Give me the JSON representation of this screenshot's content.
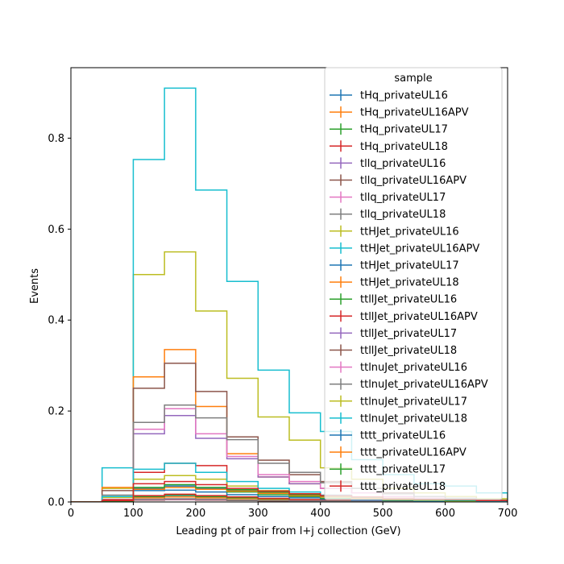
{
  "colors": [
    "#1f77b4",
    "#ff7f0e",
    "#2ca02c",
    "#d62728",
    "#9467bd",
    "#8c564b",
    "#e377c2",
    "#7f7f7f",
    "#bcbd22",
    "#17becf"
  ],
  "chart_data": {
    "type": "histogram-step",
    "xlabel": "Leading pt of pair from l+j collection (GeV)",
    "ylabel": "Events",
    "xlim": [
      0,
      700
    ],
    "ylim": [
      0,
      0.955
    ],
    "x_ticks": [
      0,
      100,
      200,
      300,
      400,
      500,
      600,
      700
    ],
    "y_ticks": [
      0.0,
      0.2,
      0.4,
      0.6,
      0.8
    ],
    "y_tick_labels": [
      "0.0",
      "0.2",
      "0.4",
      "0.6",
      "0.8"
    ],
    "grid": false,
    "legend_title": "sample",
    "legend_position": "top-right",
    "bin_edges": [
      0,
      50,
      100,
      150,
      200,
      250,
      300,
      350,
      400,
      450,
      500,
      550,
      600,
      650,
      700
    ],
    "series": [
      {
        "name": "tHq_privateUL16",
        "values": [
          0,
          0.001,
          0.01,
          0.012,
          0.01,
          0.008,
          0.006,
          0.004,
          0.003,
          0.002,
          0.001,
          0.001,
          0.001,
          0.0005
        ]
      },
      {
        "name": "tHq_privateUL16APV",
        "values": [
          0,
          0.001,
          0.009,
          0.011,
          0.009,
          0.007,
          0.005,
          0.004,
          0.003,
          0.002,
          0.001,
          0.001,
          0.001,
          0.0005
        ]
      },
      {
        "name": "tHq_privateUL17",
        "values": [
          0,
          0.001,
          0.012,
          0.015,
          0.012,
          0.009,
          0.007,
          0.005,
          0.003,
          0.002,
          0.002,
          0.001,
          0.001,
          0.0005
        ]
      },
      {
        "name": "tHq_privateUL18",
        "values": [
          0,
          0.001,
          0.014,
          0.017,
          0.014,
          0.011,
          0.008,
          0.005,
          0.004,
          0.003,
          0.002,
          0.001,
          0.001,
          0.0005
        ]
      },
      {
        "name": "tllq_privateUL16",
        "values": [
          0,
          0.002,
          0.004,
          0.005,
          0.004,
          0.003,
          0.002,
          0.002,
          0.001,
          0.001,
          0.0005,
          0.0005,
          0.0003,
          0.0002
        ]
      },
      {
        "name": "tllq_privateUL16APV",
        "values": [
          0,
          0.002,
          0.004,
          0.005,
          0.004,
          0.003,
          0.002,
          0.001,
          0.001,
          0.001,
          0.0005,
          0.0005,
          0.0003,
          0.0002
        ]
      },
      {
        "name": "tllq_privateUL17",
        "values": [
          0,
          0.003,
          0.005,
          0.006,
          0.005,
          0.004,
          0.003,
          0.002,
          0.001,
          0.001,
          0.0005,
          0.0005,
          0.0003,
          0.0002
        ]
      },
      {
        "name": "tllq_privateUL18",
        "values": [
          0,
          0.003,
          0.006,
          0.007,
          0.006,
          0.004,
          0.003,
          0.002,
          0.002,
          0.001,
          0.001,
          0.0005,
          0.0003,
          0.0002
        ]
      },
      {
        "name": "ttHJet_privateUL16",
        "values": [
          0,
          0.03,
          0.5,
          0.55,
          0.42,
          0.272,
          0.187,
          0.136,
          0.075,
          0.05,
          0.03,
          0.02,
          0.012,
          0.007
        ]
      },
      {
        "name": "ttHJet_privateUL16APV",
        "values": [
          0,
          0.075,
          0.753,
          0.91,
          0.686,
          0.485,
          0.29,
          0.196,
          0.155,
          0.093,
          0.06,
          0.04,
          0.035,
          0.02
        ]
      },
      {
        "name": "ttHJet_privateUL17",
        "values": [
          0,
          0.005,
          0.025,
          0.026,
          0.022,
          0.016,
          0.012,
          0.009,
          0.006,
          0.004,
          0.003,
          0.002,
          0.001,
          0.001
        ]
      },
      {
        "name": "ttHJet_privateUL18",
        "values": [
          0,
          0.032,
          0.275,
          0.335,
          0.21,
          0.106,
          0.055,
          0.04,
          0.03,
          0.02,
          0.012,
          0.008,
          0.005,
          0.003
        ]
      },
      {
        "name": "ttllJet_privateUL16",
        "values": [
          0,
          0.004,
          0.03,
          0.035,
          0.03,
          0.022,
          0.016,
          0.012,
          0.008,
          0.006,
          0.004,
          0.003,
          0.002,
          0.001
        ]
      },
      {
        "name": "ttllJet_privateUL16APV",
        "values": [
          0,
          0.005,
          0.065,
          0.085,
          0.08,
          0.035,
          0.022,
          0.018,
          0.012,
          0.008,
          0.005,
          0.003,
          0.002,
          0.001
        ]
      },
      {
        "name": "ttllJet_privateUL17",
        "values": [
          0,
          0.01,
          0.15,
          0.19,
          0.14,
          0.095,
          0.055,
          0.04,
          0.03,
          0.02,
          0.012,
          0.008,
          0.005,
          0.003
        ]
      },
      {
        "name": "ttllJet_privateUL18",
        "values": [
          0,
          0.025,
          0.25,
          0.305,
          0.243,
          0.143,
          0.092,
          0.06,
          0.045,
          0.03,
          0.02,
          0.012,
          0.008,
          0.004
        ]
      },
      {
        "name": "ttlnuJet_privateUL16",
        "values": [
          0,
          0.012,
          0.16,
          0.205,
          0.15,
          0.1,
          0.06,
          0.045,
          0.03,
          0.02,
          0.012,
          0.008,
          0.005,
          0.003
        ]
      },
      {
        "name": "ttlnuJet_privateUL16APV",
        "values": [
          0,
          0.015,
          0.175,
          0.213,
          0.185,
          0.137,
          0.085,
          0.065,
          0.042,
          0.03,
          0.018,
          0.012,
          0.008,
          0.004
        ]
      },
      {
        "name": "ttlnuJet_privateUL17",
        "values": [
          0,
          0.01,
          0.05,
          0.058,
          0.05,
          0.035,
          0.025,
          0.018,
          0.012,
          0.008,
          0.005,
          0.003,
          0.002,
          0.001
        ]
      },
      {
        "name": "ttlnuJet_privateUL18",
        "values": [
          0,
          0.012,
          0.072,
          0.085,
          0.065,
          0.045,
          0.03,
          0.022,
          0.015,
          0.01,
          0.006,
          0.004,
          0.003,
          0.002
        ]
      },
      {
        "name": "tttt_privateUL16",
        "values": [
          0,
          0.002,
          0.03,
          0.035,
          0.03,
          0.025,
          0.02,
          0.015,
          0.012,
          0.009,
          0.007,
          0.005,
          0.004,
          0.003
        ]
      },
      {
        "name": "tttt_privateUL16APV",
        "values": [
          0,
          0.002,
          0.028,
          0.032,
          0.028,
          0.024,
          0.019,
          0.014,
          0.011,
          0.008,
          0.006,
          0.005,
          0.004,
          0.003
        ]
      },
      {
        "name": "tttt_privateUL17",
        "values": [
          0,
          0.002,
          0.032,
          0.038,
          0.032,
          0.027,
          0.022,
          0.016,
          0.013,
          0.01,
          0.008,
          0.006,
          0.004,
          0.003
        ]
      },
      {
        "name": "tttt_privateUL18",
        "values": [
          0,
          0.003,
          0.04,
          0.045,
          0.038,
          0.03,
          0.024,
          0.018,
          0.014,
          0.011,
          0.008,
          0.006,
          0.005,
          0.003
        ]
      }
    ]
  }
}
